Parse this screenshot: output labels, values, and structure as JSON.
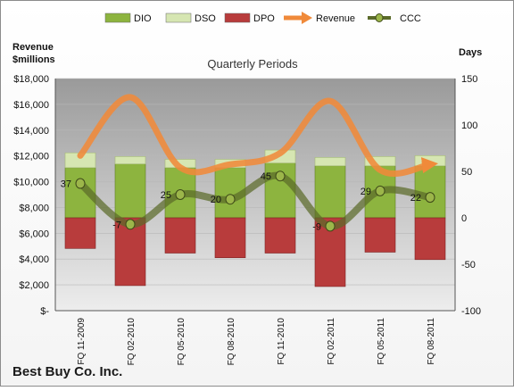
{
  "colors": {
    "dio": "#8db43f",
    "dso": "#d6e6b2",
    "dpo": "#b83c3c",
    "revenue": "#f08a3a",
    "ccc": "#5b6b2a",
    "plot_bg_top": "#9a9a9a",
    "plot_bg_bottom": "#ededed",
    "company": "#1a1a1a"
  },
  "chart_data": {
    "type": "bar",
    "title": "Quarterly Periods",
    "company": "Best Buy Co. Inc.",
    "left_axis_label_line1": "Revenue",
    "left_axis_label_line2": "$millions",
    "right_axis_label": "Days",
    "categories": [
      "FQ 11-2009",
      "FQ 02-2010",
      "FQ 05-2010",
      "FQ 08-2010",
      "FQ 11-2010",
      "FQ 02-2011",
      "FQ 05-2011",
      "FQ 08-2011"
    ],
    "left_ylim": [
      0,
      18000
    ],
    "left_ticks": [
      0,
      2000,
      4000,
      6000,
      8000,
      10000,
      12000,
      14000,
      16000,
      18000
    ],
    "left_tick_labels": [
      "$-",
      "$2,000",
      "$4,000",
      "$6,000",
      "$8,000",
      "$10,000",
      "$12,000",
      "$14,000",
      "$16,000",
      "$18,000"
    ],
    "right_ylim": [
      -100,
      150
    ],
    "right_ticks": [
      -100,
      -50,
      0,
      50,
      100,
      150
    ],
    "right_tick_labels": [
      "-100",
      "-50",
      "0",
      "50",
      "100",
      "150"
    ],
    "legend": [
      "DIO",
      "DSO",
      "DPO",
      "Revenue",
      "CCC"
    ],
    "legend_position": "top",
    "series": [
      {
        "name": "DIO",
        "type": "bar",
        "axis": "right",
        "values": [
          54,
          58,
          54,
          54,
          59,
          56,
          56,
          56
        ]
      },
      {
        "name": "DSO",
        "type": "bar",
        "axis": "right",
        "values": [
          16,
          8,
          9,
          9,
          14,
          9,
          10,
          11
        ]
      },
      {
        "name": "DPO",
        "type": "bar",
        "axis": "right",
        "values": [
          -33,
          -73,
          -38,
          -43,
          -38,
          -74,
          -37,
          -45
        ]
      },
      {
        "name": "Revenue",
        "type": "line",
        "axis": "left",
        "values": [
          12024,
          16553,
          11104,
          11339,
          12218,
          16256,
          10911,
          11347
        ]
      },
      {
        "name": "CCC",
        "type": "line",
        "axis": "right",
        "values": [
          37,
          -7,
          25,
          20,
          45,
          -9,
          29,
          22
        ]
      }
    ],
    "ccc_labels": [
      "37",
      "-7",
      "25",
      "20",
      "45",
      "-9",
      "29",
      "22"
    ]
  }
}
